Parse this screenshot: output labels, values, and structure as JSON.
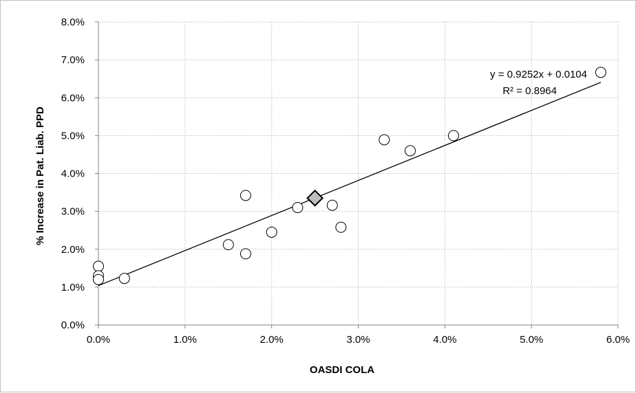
{
  "chart_data": {
    "type": "scatter",
    "xlabel": "OASDI COLA",
    "ylabel": "% Increase in Pat. Liab. PPD",
    "xlim": [
      0.0,
      0.06
    ],
    "ylim": [
      0.0,
      0.08
    ],
    "x_ticks": [
      "0.0%",
      "1.0%",
      "2.0%",
      "3.0%",
      "4.0%",
      "5.0%",
      "6.0%"
    ],
    "y_ticks": [
      "0.0%",
      "1.0%",
      "2.0%",
      "3.0%",
      "4.0%",
      "5.0%",
      "6.0%",
      "7.0%",
      "8.0%"
    ],
    "grid": true,
    "series": [
      {
        "marker": "circle",
        "points": [
          {
            "x": 0.0,
            "y": 0.0155
          },
          {
            "x": 0.0,
            "y": 0.013
          },
          {
            "x": 0.0,
            "y": 0.012
          },
          {
            "x": 0.003,
            "y": 0.0123
          },
          {
            "x": 0.015,
            "y": 0.0212
          },
          {
            "x": 0.017,
            "y": 0.0188
          },
          {
            "x": 0.017,
            "y": 0.0342
          },
          {
            "x": 0.02,
            "y": 0.0245
          },
          {
            "x": 0.023,
            "y": 0.031
          },
          {
            "x": 0.027,
            "y": 0.0316
          },
          {
            "x": 0.028,
            "y": 0.0258
          },
          {
            "x": 0.033,
            "y": 0.0489
          },
          {
            "x": 0.036,
            "y": 0.046
          },
          {
            "x": 0.041,
            "y": 0.05
          },
          {
            "x": 0.058,
            "y": 0.0667
          }
        ]
      },
      {
        "marker": "diamond",
        "points": [
          {
            "x": 0.025,
            "y": 0.0335
          }
        ]
      }
    ],
    "trendline": {
      "slope": 0.9252,
      "intercept": 0.0104,
      "x_range": [
        0.0,
        0.058
      ]
    },
    "annotations": {
      "equation": "y = 0.9252x + 0.0104",
      "r_squared": "R² = 0.8964"
    },
    "colors": {
      "grid": "#a6a6a6",
      "axis": "#808080",
      "marker_fill": "#ffffff",
      "marker_stroke": "#000000",
      "diamond_fill": "#bfbfbf"
    }
  }
}
